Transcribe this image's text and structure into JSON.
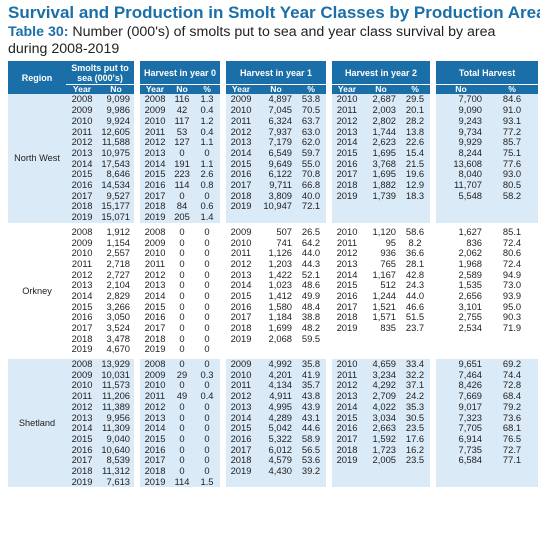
{
  "title": "Survival and Production in Smolt Year Classes by Production Area",
  "subtitle_label": "Table 30:",
  "subtitle_text": " Number (000's) of smolts put to sea and year class survival by area during 2008-2019",
  "header": {
    "region": "Region",
    "smolts": "Smolts put to sea (000's)",
    "harvest0": "Harvest in year 0",
    "harvest1": "Harvest in year 1",
    "harvest2": "Harvest in year 2",
    "total": "Total Harvest",
    "year": "Year",
    "no": "No",
    "pct": "%"
  },
  "regions": [
    {
      "name": "North West",
      "rows": [
        [
          "2008",
          "9,099",
          "2008",
          "116",
          "1.3",
          "2009",
          "4,897",
          "53.8",
          "2010",
          "2,687",
          "29.5",
          "7,700",
          "84.6"
        ],
        [
          "2009",
          "9,986",
          "2009",
          "42",
          "0.4",
          "2010",
          "7,045",
          "70.5",
          "2011",
          "2,003",
          "20.1",
          "9,090",
          "91.0"
        ],
        [
          "2010",
          "9,924",
          "2010",
          "117",
          "1.2",
          "2011",
          "6,324",
          "63.7",
          "2012",
          "2,802",
          "28.2",
          "9,243",
          "93.1"
        ],
        [
          "2011",
          "12,605",
          "2011",
          "53",
          "0.4",
          "2012",
          "7,937",
          "63.0",
          "2013",
          "1,744",
          "13.8",
          "9,734",
          "77.2"
        ],
        [
          "2012",
          "11,588",
          "2012",
          "127",
          "1.1",
          "2013",
          "7,179",
          "62.0",
          "2014",
          "2,623",
          "22.6",
          "9,929",
          "85.7"
        ],
        [
          "2013",
          "10,975",
          "2013",
          "0",
          "0",
          "2014",
          "6,549",
          "59.7",
          "2015",
          "1,695",
          "15.4",
          "8,244",
          "75.1"
        ],
        [
          "2014",
          "17,543",
          "2014",
          "191",
          "1.1",
          "2015",
          "9,649",
          "55.0",
          "2016",
          "3,768",
          "21.5",
          "13,608",
          "77.6"
        ],
        [
          "2015",
          "8,646",
          "2015",
          "223",
          "2.6",
          "2016",
          "6,122",
          "70.8",
          "2017",
          "1,695",
          "19.6",
          "8,040",
          "93.0"
        ],
        [
          "2016",
          "14,534",
          "2016",
          "114",
          "0.8",
          "2017",
          "9,711",
          "66.8",
          "2018",
          "1,882",
          "12.9",
          "11,707",
          "80.5"
        ],
        [
          "2017",
          "9,527",
          "2017",
          "0",
          "0",
          "2018",
          "3,809",
          "40.0",
          "2019",
          "1,739",
          "18.3",
          "5,548",
          "58.2"
        ],
        [
          "2018",
          "15,177",
          "2018",
          "84",
          "0.6",
          "2019",
          "10,947",
          "72.1",
          "",
          "",
          "",
          "",
          ""
        ],
        [
          "2019",
          "15,071",
          "2019",
          "205",
          "1.4",
          "",
          "",
          "",
          "",
          "",
          "",
          "",
          ""
        ]
      ]
    },
    {
      "name": "Orkney",
      "rows": [
        [
          "2008",
          "1,912",
          "2008",
          "0",
          "0",
          "2009",
          "507",
          "26.5",
          "2010",
          "1,120",
          "58.6",
          "1,627",
          "85.1"
        ],
        [
          "2009",
          "1,154",
          "2009",
          "0",
          "0",
          "2010",
          "741",
          "64.2",
          "2011",
          "95",
          "8.2",
          "836",
          "72.4"
        ],
        [
          "2010",
          "2,557",
          "2010",
          "0",
          "0",
          "2011",
          "1,126",
          "44.0",
          "2012",
          "936",
          "36.6",
          "2,062",
          "80.6"
        ],
        [
          "2011",
          "2,718",
          "2011",
          "0",
          "0",
          "2012",
          "1,203",
          "44.3",
          "2013",
          "765",
          "28.1",
          "1,968",
          "72.4"
        ],
        [
          "2012",
          "2,727",
          "2012",
          "0",
          "0",
          "2013",
          "1,422",
          "52.1",
          "2014",
          "1,167",
          "42.8",
          "2,589",
          "94.9"
        ],
        [
          "2013",
          "2,104",
          "2013",
          "0",
          "0",
          "2014",
          "1,023",
          "48.6",
          "2015",
          "512",
          "24.3",
          "1,535",
          "73.0"
        ],
        [
          "2014",
          "2,829",
          "2014",
          "0",
          "0",
          "2015",
          "1,412",
          "49.9",
          "2016",
          "1,244",
          "44.0",
          "2,656",
          "93.9"
        ],
        [
          "2015",
          "3,266",
          "2015",
          "0",
          "0",
          "2016",
          "1,580",
          "48.4",
          "2017",
          "1,521",
          "46.6",
          "3,101",
          "95.0"
        ],
        [
          "2016",
          "3,050",
          "2016",
          "0",
          "0",
          "2017",
          "1,184",
          "38.8",
          "2018",
          "1,571",
          "51.5",
          "2,755",
          "90.3"
        ],
        [
          "2017",
          "3,524",
          "2017",
          "0",
          "0",
          "2018",
          "1,699",
          "48.2",
          "2019",
          "835",
          "23.7",
          "2,534",
          "71.9"
        ],
        [
          "2018",
          "3,478",
          "2018",
          "0",
          "0",
          "2019",
          "2,068",
          "59.5",
          "",
          "",
          "",
          "",
          ""
        ],
        [
          "2019",
          "4,670",
          "2019",
          "0",
          "0",
          "",
          "",
          "",
          "",
          "",
          "",
          "",
          ""
        ]
      ]
    },
    {
      "name": "Shetland",
      "rows": [
        [
          "2008",
          "13,929",
          "2008",
          "0",
          "0",
          "2009",
          "4,992",
          "35.8",
          "2010",
          "4,659",
          "33.4",
          "9,651",
          "69.2"
        ],
        [
          "2009",
          "10,031",
          "2009",
          "29",
          "0.3",
          "2010",
          "4,201",
          "41.9",
          "2011",
          "3,234",
          "32.2",
          "7,464",
          "74.4"
        ],
        [
          "2010",
          "11,573",
          "2010",
          "0",
          "0",
          "2011",
          "4,134",
          "35.7",
          "2012",
          "4,292",
          "37.1",
          "8,426",
          "72.8"
        ],
        [
          "2011",
          "11,206",
          "2011",
          "49",
          "0.4",
          "2012",
          "4,911",
          "43.8",
          "2013",
          "2,709",
          "24.2",
          "7,669",
          "68.4"
        ],
        [
          "2012",
          "11,389",
          "2012",
          "0",
          "0",
          "2013",
          "4,995",
          "43.9",
          "2014",
          "4,022",
          "35.3",
          "9,017",
          "79.2"
        ],
        [
          "2013",
          "9,956",
          "2013",
          "0",
          "0",
          "2014",
          "4,289",
          "43.1",
          "2015",
          "3,034",
          "30.5",
          "7,323",
          "73.6"
        ],
        [
          "2014",
          "11,309",
          "2014",
          "0",
          "0",
          "2015",
          "5,042",
          "44.6",
          "2016",
          "2,663",
          "23.5",
          "7,705",
          "68.1"
        ],
        [
          "2015",
          "9,040",
          "2015",
          "0",
          "0",
          "2016",
          "5,322",
          "58.9",
          "2017",
          "1,592",
          "17.6",
          "6,914",
          "76.5"
        ],
        [
          "2016",
          "10,640",
          "2016",
          "0",
          "0",
          "2017",
          "6,012",
          "56.5",
          "2018",
          "1,723",
          "16.2",
          "7,735",
          "72.7"
        ],
        [
          "2017",
          "8,539",
          "2017",
          "0",
          "0",
          "2018",
          "4,579",
          "53.6",
          "2019",
          "2,005",
          "23.5",
          "6,584",
          "77.1"
        ],
        [
          "2018",
          "11,312",
          "2018",
          "0",
          "0",
          "2019",
          "4,430",
          "39.2",
          "",
          "",
          "",
          "",
          ""
        ],
        [
          "2019",
          "7,613",
          "2019",
          "114",
          "1.5",
          "",
          "",
          "",
          "",
          "",
          "",
          "",
          ""
        ]
      ]
    }
  ],
  "colors": {
    "header_blue": "#1b6fa8",
    "band_blue": "#daeaf6",
    "title_blue": "#1b6fa8"
  }
}
